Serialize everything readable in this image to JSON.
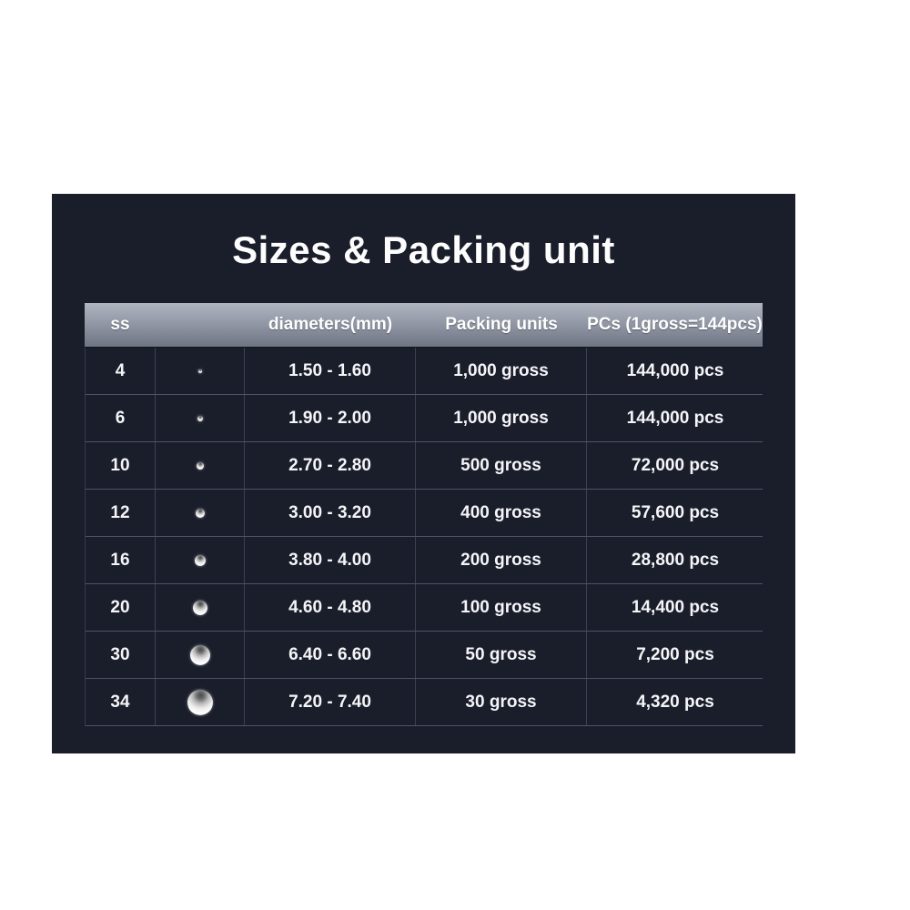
{
  "page": {
    "background": "#ffffff"
  },
  "panel": {
    "background": "#1a1e2b",
    "title": "Sizes & Packing unit",
    "title_color": "#fdfdfd"
  },
  "table": {
    "header_gradient_top": "#b0b5c0",
    "header_gradient_bottom": "#6f7582",
    "row_divider_color": "#4d5466",
    "column_divider_color": "#3a4152",
    "headers": {
      "ss": "ss",
      "image": "",
      "diameters": "diameters(mm)",
      "packing": "Packing units",
      "pcs": "PCs (1gross=144pcs)"
    },
    "rows": [
      {
        "ss": "4",
        "gem_size": 4,
        "diameters": "1.50 - 1.60",
        "packing": "1,000 gross",
        "pcs": "144,000 pcs"
      },
      {
        "ss": "6",
        "gem_size": 6,
        "diameters": "1.90 - 2.00",
        "packing": "1,000 gross",
        "pcs": "144,000 pcs"
      },
      {
        "ss": "10",
        "gem_size": 8,
        "diameters": "2.70 - 2.80",
        "packing": "500 gross",
        "pcs": "72,000 pcs"
      },
      {
        "ss": "12",
        "gem_size": 10,
        "diameters": "3.00 - 3.20",
        "packing": "400 gross",
        "pcs": "57,600 pcs"
      },
      {
        "ss": "16",
        "gem_size": 12,
        "diameters": "3.80 - 4.00",
        "packing": "200 gross",
        "pcs": "28,800 pcs"
      },
      {
        "ss": "20",
        "gem_size": 16,
        "diameters": "4.60 - 4.80",
        "packing": "100 gross",
        "pcs": "14,400 pcs"
      },
      {
        "ss": "30",
        "gem_size": 22,
        "diameters": "6.40 - 6.60",
        "packing": "50 gross",
        "pcs": "7,200 pcs"
      },
      {
        "ss": "34",
        "gem_size": 28,
        "diameters": "7.20 - 7.40",
        "packing": "30 gross",
        "pcs": "4,320 pcs"
      }
    ]
  },
  "chart_data": {
    "type": "table",
    "title": "Sizes & Packing unit",
    "columns": [
      "ss",
      "stone-image",
      "diameters(mm)",
      "Packing units",
      "PCs (1gross=144pcs)"
    ],
    "rows": [
      [
        "4",
        "1.50 - 1.60",
        "1,000 gross",
        "144,000 pcs"
      ],
      [
        "6",
        "1.90 - 2.00",
        "1,000 gross",
        "144,000 pcs"
      ],
      [
        "10",
        "2.70 - 2.80",
        "500 gross",
        "72,000 pcs"
      ],
      [
        "12",
        "3.00 - 3.20",
        "400 gross",
        "57,600 pcs"
      ],
      [
        "16",
        "3.80 - 4.00",
        "200 gross",
        "28,800 pcs"
      ],
      [
        "20",
        "4.60 - 4.80",
        "100 gross",
        "14,400 pcs"
      ],
      [
        "30",
        "6.40 - 6.60",
        "50 gross",
        "7,200 pcs"
      ],
      [
        "34",
        "7.20 - 7.40",
        "30 gross",
        "4,320 pcs"
      ]
    ]
  }
}
